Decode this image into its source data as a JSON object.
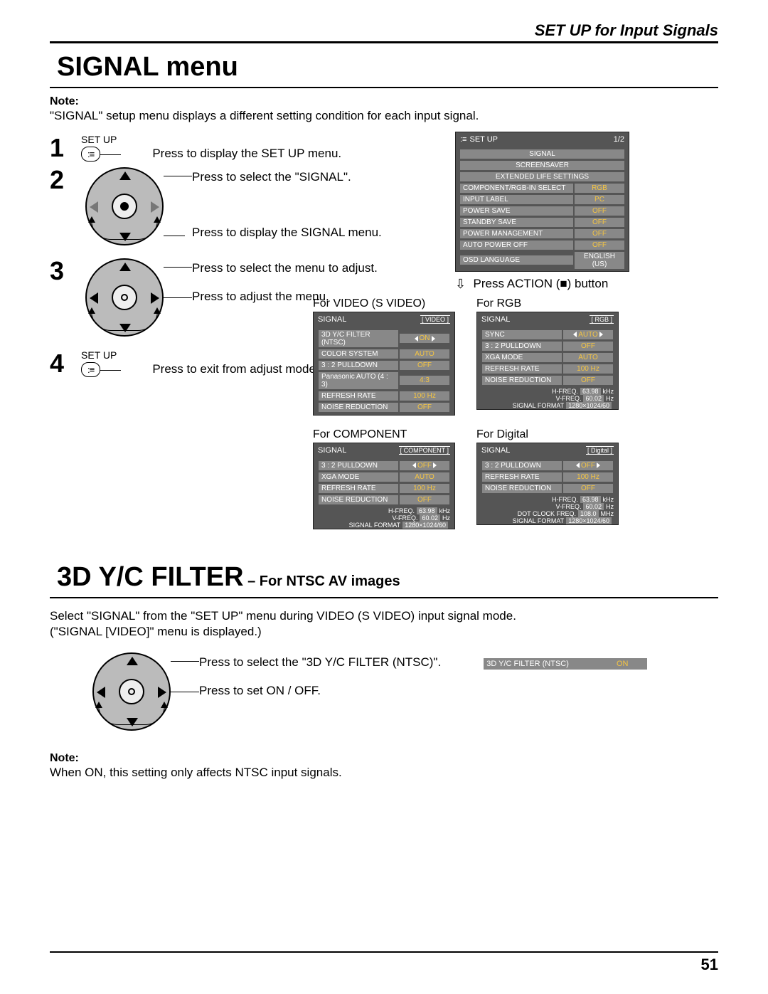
{
  "header": {
    "section": "SET UP for Input Signals"
  },
  "signal_menu": {
    "title": "SIGNAL menu",
    "note_label": "Note:",
    "note_text": "\"SIGNAL\" setup menu displays a different setting condition for each input signal.",
    "steps": {
      "s1": {
        "num": "1",
        "btn_label": "SET UP",
        "text": "Press to display the SET UP menu."
      },
      "s2": {
        "num": "2",
        "line1": "Press to select the \"SIGNAL\".",
        "line2": "Press to display the SIGNAL menu."
      },
      "s3": {
        "num": "3",
        "line1": "Press to select the menu to adjust.",
        "line2": "Press to adjust the menu."
      },
      "s4": {
        "num": "4",
        "btn_label": "SET UP",
        "text": "Press to exit from adjust mode."
      }
    },
    "press_action": "Press ACTION (■) button"
  },
  "setup_osd": {
    "title": "SET UP",
    "page": "1/2",
    "rows": [
      {
        "label": "SIGNAL"
      },
      {
        "label": "SCREENSAVER"
      },
      {
        "label": "EXTENDED LIFE SETTINGS"
      },
      {
        "label": "COMPONENT/RGB-IN SELECT",
        "val": "RGB"
      },
      {
        "label": "INPUT LABEL",
        "val": "PC"
      },
      {
        "label": "POWER SAVE",
        "val": "OFF"
      },
      {
        "label": "STANDBY SAVE",
        "val": "OFF"
      },
      {
        "label": "POWER MANAGEMENT",
        "val": "OFF"
      },
      {
        "label": "AUTO POWER OFF",
        "val": "OFF"
      },
      {
        "label": "OSD LANGUAGE",
        "val": "ENGLISH (US)"
      }
    ]
  },
  "signal_panels": {
    "video": {
      "caption": "For VIDEO (S VIDEO)",
      "title": "SIGNAL",
      "mode": "VIDEO",
      "rows": [
        {
          "label": "3D Y/C FILTER (NTSC)",
          "val": "ON",
          "arrows": true
        },
        {
          "label": "COLOR SYSTEM",
          "val": "AUTO"
        },
        {
          "label": "3 : 2 PULLDOWN",
          "val": "OFF"
        },
        {
          "label": "Panasonic AUTO (4 : 3)",
          "val": "4:3"
        },
        {
          "label": "REFRESH RATE",
          "val": "100 Hz"
        },
        {
          "label": "NOISE REDUCTION",
          "val": "OFF"
        }
      ]
    },
    "rgb": {
      "caption": "For RGB",
      "title": "SIGNAL",
      "mode": "RGB",
      "rows": [
        {
          "label": "SYNC",
          "val": "AUTO",
          "arrows": true
        },
        {
          "label": "3 : 2 PULLDOWN",
          "val": "OFF"
        },
        {
          "label": "XGA MODE",
          "val": "AUTO"
        },
        {
          "label": "REFRESH RATE",
          "val": "100 Hz"
        },
        {
          "label": "NOISE REDUCTION",
          "val": "OFF"
        }
      ],
      "info": [
        {
          "k": "H-FREQ.",
          "v": "63.98",
          "u": "kHz"
        },
        {
          "k": "V-FREQ.",
          "v": "60.02",
          "u": "Hz"
        },
        {
          "k": "SIGNAL FORMAT",
          "v": "1280×1024/60",
          "u": ""
        }
      ]
    },
    "component": {
      "caption": "For COMPONENT",
      "title": "SIGNAL",
      "mode": "COMPONENT",
      "rows": [
        {
          "label": "3 : 2 PULLDOWN",
          "val": "OFF",
          "arrows": true
        },
        {
          "label": "XGA MODE",
          "val": "AUTO"
        },
        {
          "label": "REFRESH RATE",
          "val": "100 Hz"
        },
        {
          "label": "NOISE REDUCTION",
          "val": "OFF"
        }
      ],
      "info": [
        {
          "k": "H-FREQ.",
          "v": "63.98",
          "u": "kHz"
        },
        {
          "k": "V-FREQ.",
          "v": "60.02",
          "u": "Hz"
        },
        {
          "k": "SIGNAL FORMAT",
          "v": "1280×1024/60",
          "u": ""
        }
      ]
    },
    "digital": {
      "caption": "For Digital",
      "title": "SIGNAL",
      "mode": "Digital",
      "rows": [
        {
          "label": "3 : 2 PULLDOWN",
          "val": "OFF",
          "arrows": true
        },
        {
          "label": "REFRESH RATE",
          "val": "100 Hz"
        },
        {
          "label": "NOISE REDUCTION",
          "val": "OFF"
        }
      ],
      "info": [
        {
          "k": "H-FREQ.",
          "v": "63.98",
          "u": "kHz"
        },
        {
          "k": "V-FREQ.",
          "v": "60.02",
          "u": "Hz"
        },
        {
          "k": "DOT CLOCK FREQ.",
          "v": "108.0",
          "u": "MHz"
        },
        {
          "k": "SIGNAL FORMAT",
          "v": "1280×1024/60",
          "u": ""
        }
      ]
    }
  },
  "filter_section": {
    "title_main": "3D Y/C FILTER",
    "title_sub": " – For NTSC AV images",
    "intro1": "Select \"SIGNAL\" from the \"SET UP\" menu during VIDEO (S VIDEO) input signal mode.",
    "intro2": "(\"SIGNAL [VIDEO]\" menu is displayed.)",
    "line1": "Press to select the \"3D Y/C FILTER (NTSC)\".",
    "line2": "Press to set ON / OFF.",
    "osd_label": "3D Y/C FILTER (NTSC)",
    "osd_val": "ON",
    "note_label": "Note:",
    "note_text": "When ON, this setting only affects NTSC input signals."
  },
  "footer": {
    "page": "51"
  }
}
